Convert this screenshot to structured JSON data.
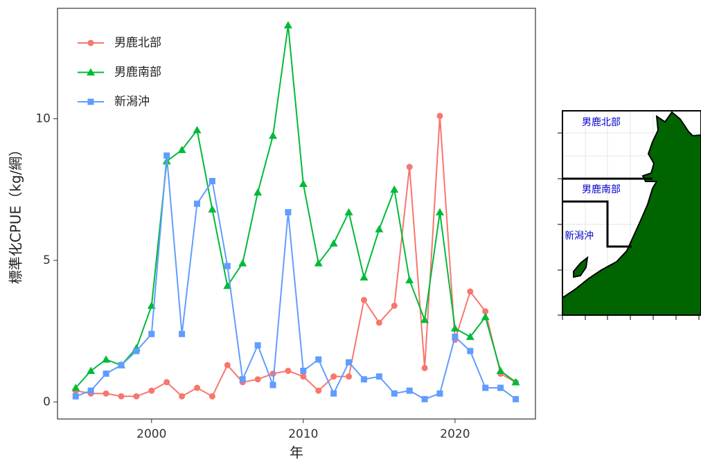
{
  "chart_data": {
    "type": "line",
    "x_label": "年",
    "y_label": "標準化CPUE（kg/網）",
    "x": [
      1995,
      1996,
      1997,
      1998,
      1999,
      2000,
      2001,
      2002,
      2003,
      2004,
      2005,
      2006,
      2007,
      2008,
      2009,
      2010,
      2011,
      2012,
      2013,
      2014,
      2015,
      2016,
      2017,
      2018,
      2019,
      2020,
      2021,
      2022,
      2023,
      2024
    ],
    "series": [
      {
        "name": "男鹿北部",
        "color": "#f8766d",
        "marker": "circle",
        "values": [
          0.4,
          0.3,
          0.3,
          0.2,
          0.2,
          0.4,
          0.7,
          0.2,
          0.5,
          0.2,
          1.3,
          0.7,
          0.8,
          1.0,
          1.1,
          0.9,
          0.4,
          0.9,
          0.9,
          3.6,
          2.8,
          3.4,
          8.3,
          1.2,
          10.1,
          2.2,
          3.9,
          3.2,
          1.0,
          0.7
        ]
      },
      {
        "name": "男鹿南部",
        "color": "#00ba38",
        "marker": "triangle",
        "values": [
          0.5,
          1.1,
          1.5,
          1.3,
          1.9,
          3.4,
          8.5,
          8.9,
          9.6,
          6.8,
          4.1,
          4.9,
          7.4,
          9.4,
          13.3,
          7.7,
          4.9,
          5.6,
          6.7,
          4.4,
          6.1,
          7.5,
          4.3,
          2.9,
          6.7,
          2.6,
          2.3,
          3.0,
          1.1,
          0.7
        ]
      },
      {
        "name": "新潟沖",
        "color": "#619cff",
        "marker": "square",
        "values": [
          0.2,
          0.4,
          1.0,
          1.3,
          1.8,
          2.4,
          8.7,
          2.4,
          7.0,
          7.8,
          4.8,
          0.8,
          2.0,
          0.6,
          6.7,
          1.1,
          1.5,
          0.3,
          1.4,
          0.8,
          0.9,
          0.3,
          0.4,
          0.1,
          0.3,
          2.3,
          1.8,
          0.5,
          0.5,
          0.1
        ]
      }
    ],
    "xlim": [
      1993.8,
      2025.3
    ],
    "xticks": [
      2000,
      2010,
      2020
    ],
    "ylim": [
      -0.6,
      13.9
    ],
    "yticks": [
      0,
      5,
      10
    ],
    "legend": "top-left"
  },
  "map": {
    "labels": [
      "男鹿北部",
      "男鹿南部",
      "新潟沖"
    ]
  }
}
